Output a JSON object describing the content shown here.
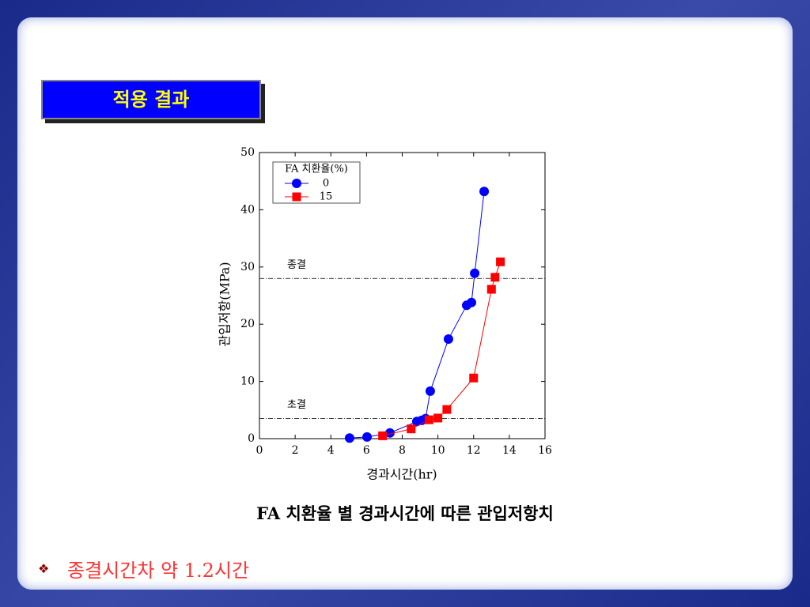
{
  "header": {
    "title": "적용 결과"
  },
  "chart_data": {
    "type": "line",
    "xlabel": "경과시간(hr)",
    "ylabel": "관입저항(MPa)",
    "xlim": [
      0,
      16
    ],
    "xticks": [
      0,
      2,
      4,
      6,
      8,
      10,
      12,
      14,
      16
    ],
    "ylim": [
      0,
      50
    ],
    "yticks": [
      0,
      10,
      20,
      30,
      40,
      50
    ],
    "legend_title": "FA 치환율(%)",
    "series": [
      {
        "name": "0",
        "color": "#0000ff",
        "marker": "circle",
        "x": [
          5.05,
          6.03,
          7.31,
          8.82,
          9.09,
          9.31,
          9.57,
          10.59,
          11.61,
          11.88,
          12.06,
          12.59
        ],
        "values": [
          0.1,
          0.3,
          1.0,
          3.0,
          3.2,
          3.5,
          8.3,
          17.4,
          23.3,
          23.8,
          28.9,
          43.2
        ]
      },
      {
        "name": "15",
        "color": "#ff0000",
        "marker": "square",
        "x": [
          6.9,
          8.5,
          9.5,
          10.0,
          10.5,
          12.0,
          13.0,
          13.2,
          13.5
        ],
        "values": [
          0.5,
          1.7,
          3.3,
          3.6,
          5.1,
          10.6,
          26.1,
          28.2,
          30.9
        ]
      }
    ],
    "reference_lines": [
      {
        "label": "초결",
        "value": 3.5
      },
      {
        "label": "종결",
        "value": 28
      }
    ]
  },
  "caption": "FA 치환율 별 경과시간에 따른 관입저항치",
  "bullet": "종결시간차 약 1.2시간"
}
